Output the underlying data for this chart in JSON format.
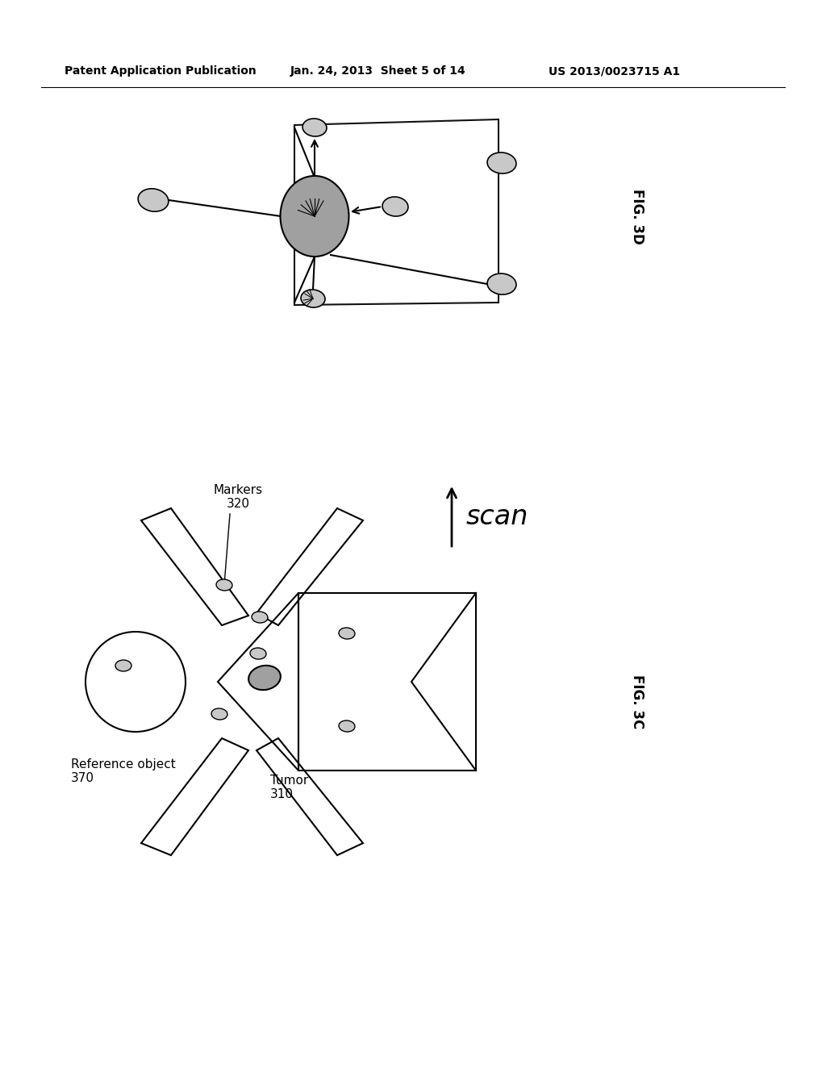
{
  "header_left": "Patent Application Publication",
  "header_mid": "Jan. 24, 2013  Sheet 5 of 14",
  "header_right": "US 2013/0023715 A1",
  "fig3d_label": "FIG. 3D",
  "fig3c_label": "FIG. 3C",
  "bg_color": "#ffffff",
  "line_color": "#000000",
  "ellipse_fill": "#c8c8c8",
  "ellipse_edge": "#000000",
  "tumor_fill": "#a0a0a0",
  "tumor_edge": "#000000",
  "scan_label": "scan",
  "markers_label": "Markers\n320",
  "ref_obj_label": "Reference object\n370",
  "tumor_label": "Tumor\n310"
}
